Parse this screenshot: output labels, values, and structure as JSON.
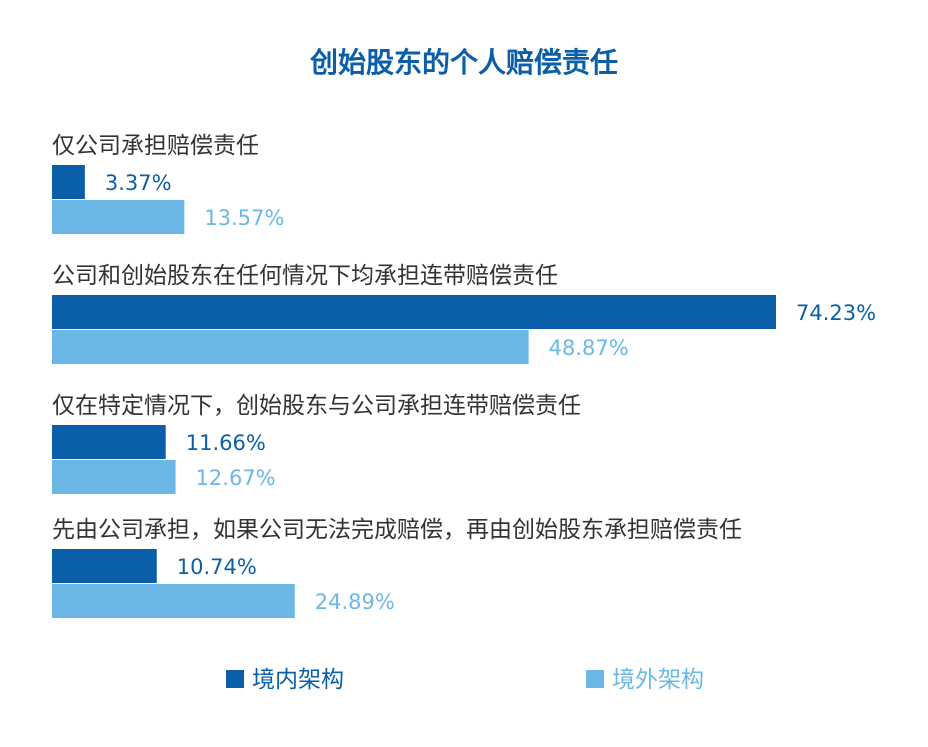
{
  "chart_data": {
    "type": "bar",
    "orientation": "horizontal",
    "title": "创始股东的个人赔偿责任",
    "categories": [
      "仅公司承担赔偿责任",
      "公司和创始股东在任何情况下均承担连带赔偿责任",
      "仅在特定情况下，创始股东与公司承担连带赔偿责任",
      "先由公司承担，如果公司无法完成赔偿，再由创始股东承担赔偿责任"
    ],
    "series": [
      {
        "name": "境内架构",
        "values": [
          3.37,
          74.23,
          11.66,
          10.74
        ],
        "labels": [
          "3.37%",
          "74.23%",
          "11.66%",
          "10.74%"
        ],
        "color": "#0a5fa8"
      },
      {
        "name": "境外架构",
        "values": [
          13.57,
          48.87,
          12.67,
          24.89
        ],
        "labels": [
          "13.57%",
          "48.87%",
          "12.67%",
          "24.89%"
        ],
        "color": "#6bb8e6"
      }
    ],
    "unit": "%",
    "xlim": [
      0,
      74.23
    ],
    "grid": false,
    "legend_position": "bottom",
    "title_color": "#0a5fa8",
    "text_color": "#333333"
  }
}
